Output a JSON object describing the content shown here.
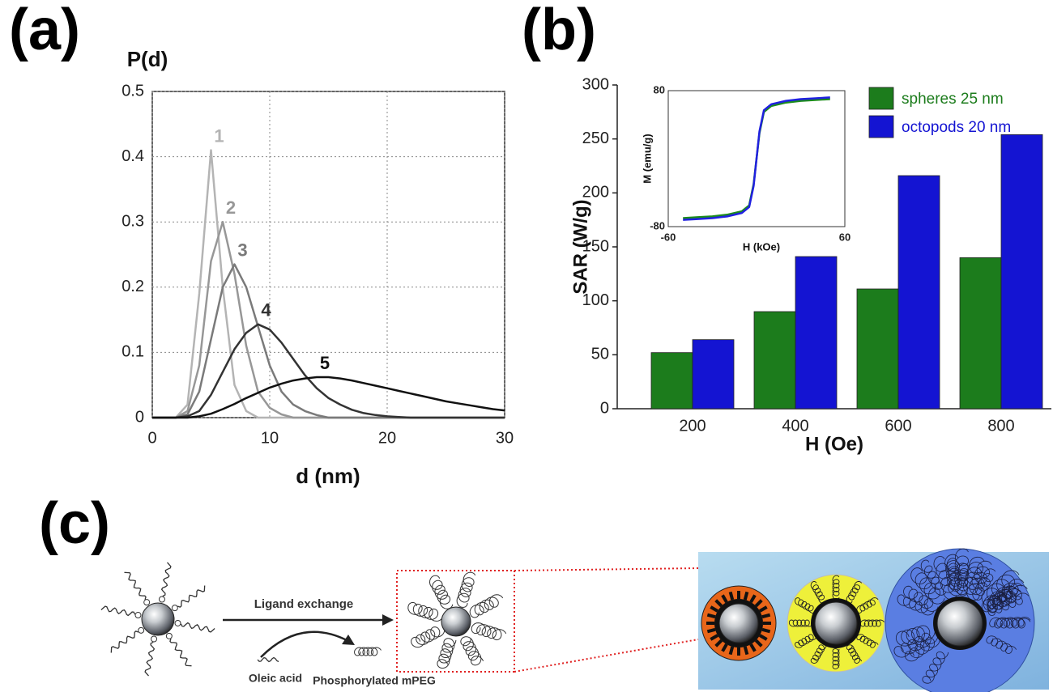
{
  "figure_labels": [
    "(a)",
    "(b)",
    "(c)"
  ],
  "chart_data": [
    {
      "type": "line",
      "xlabel": "d (nm)",
      "ylabel": "P(d)",
      "x": [
        0,
        1,
        2,
        3,
        4,
        5,
        6,
        7,
        8,
        9,
        10,
        11,
        12,
        13,
        14,
        15,
        16,
        17,
        18,
        19,
        20,
        21,
        22,
        23,
        24,
        25,
        26,
        27,
        28,
        29,
        30
      ],
      "xlim": [
        0,
        30
      ],
      "xticks": [
        0,
        10,
        20,
        30
      ],
      "ylim": [
        0,
        0.5
      ],
      "yticks": [
        0,
        0.1,
        0.2,
        0.3,
        0.4,
        0.5
      ],
      "grid": true,
      "series": [
        {
          "name": "1",
          "color": "#b4b4b4",
          "values": [
            0,
            0,
            0,
            0.02,
            0.19,
            0.41,
            0.2,
            0.05,
            0.01,
            0,
            0,
            0,
            0,
            0,
            0,
            0,
            0,
            0,
            0,
            0,
            0,
            0,
            0,
            0,
            0,
            0,
            0,
            0,
            0,
            0,
            0
          ]
        },
        {
          "name": "2",
          "color": "#979797",
          "values": [
            0,
            0,
            0,
            0.01,
            0.08,
            0.24,
            0.3,
            0.22,
            0.11,
            0.04,
            0.015,
            0.005,
            0,
            0,
            0,
            0,
            0,
            0,
            0,
            0,
            0,
            0,
            0,
            0,
            0,
            0,
            0,
            0,
            0,
            0,
            0
          ]
        },
        {
          "name": "3",
          "color": "#7a7a7a",
          "values": [
            0,
            0,
            0,
            0.005,
            0.04,
            0.12,
            0.2,
            0.235,
            0.2,
            0.14,
            0.08,
            0.04,
            0.02,
            0.01,
            0.004,
            0,
            0,
            0,
            0,
            0,
            0,
            0,
            0,
            0,
            0,
            0,
            0,
            0,
            0,
            0,
            0
          ]
        },
        {
          "name": "4",
          "color": "#333333",
          "values": [
            0,
            0,
            0,
            0.002,
            0.01,
            0.035,
            0.07,
            0.105,
            0.13,
            0.143,
            0.135,
            0.115,
            0.09,
            0.065,
            0.045,
            0.03,
            0.02,
            0.012,
            0.007,
            0.004,
            0.002,
            0.001,
            0,
            0,
            0,
            0,
            0,
            0,
            0,
            0,
            0
          ]
        },
        {
          "name": "5",
          "color": "#111111",
          "values": [
            0,
            0,
            0,
            0,
            0.002,
            0.006,
            0.013,
            0.021,
            0.03,
            0.038,
            0.046,
            0.052,
            0.057,
            0.06,
            0.062,
            0.062,
            0.06,
            0.057,
            0.053,
            0.049,
            0.045,
            0.041,
            0.037,
            0.033,
            0.029,
            0.025,
            0.022,
            0.019,
            0.016,
            0.013,
            0.011
          ]
        }
      ]
    },
    {
      "type": "bar",
      "xlabel": "H (Oe)",
      "ylabel": "SAR (W/g)",
      "categories": [
        "200",
        "400",
        "600",
        "800"
      ],
      "ylim": [
        0,
        300
      ],
      "yticks": [
        0,
        50,
        100,
        150,
        200,
        250,
        300
      ],
      "legend": "upper right",
      "series": [
        {
          "name": "spheres 25 nm",
          "color": "#1c7c1c",
          "values": [
            52,
            90,
            111,
            140
          ]
        },
        {
          "name": "octopods 20 nm",
          "color": "#1414d2",
          "values": [
            64,
            141,
            216,
            254
          ]
        }
      ]
    },
    {
      "type": "line",
      "xlabel": "H (kOe)",
      "ylabel": "M (emu/g)",
      "x": [
        -50,
        -40,
        -30,
        -20,
        -10,
        -5,
        -2,
        0,
        2,
        5,
        10,
        20,
        30,
        40,
        50
      ],
      "xlim": [
        -60,
        60
      ],
      "xticks": [
        -60,
        60
      ],
      "ylim": [
        -80,
        80
      ],
      "yticks": [
        -80,
        80
      ],
      "grid": false,
      "series": [
        {
          "color": "#1c8c1c",
          "values": [
            -70,
            -69,
            -68,
            -66,
            -62,
            -55,
            -30,
            0,
            30,
            55,
            62,
            66,
            68,
            69,
            70
          ]
        },
        {
          "color": "#2020e0",
          "values": [
            -72,
            -71,
            -70,
            -68,
            -64,
            -57,
            -32,
            0,
            32,
            57,
            64,
            68,
            70,
            71,
            72
          ]
        }
      ]
    }
  ],
  "diagram": {
    "arrow_label": "Ligand exchange",
    "start_label": "Oleic acid",
    "end_label": "Phosphorylated mPEG"
  }
}
